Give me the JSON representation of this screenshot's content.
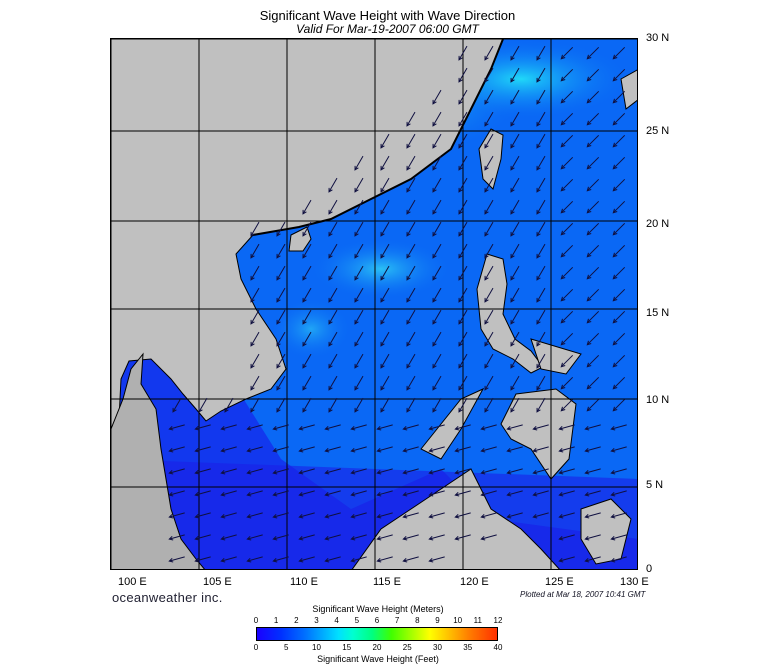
{
  "title": "Significant Wave Height with Wave Direction",
  "subtitle": "Valid For Mar-19-2007 06:00 GMT",
  "lon_labels": [
    "100 E",
    "105 E",
    "110 E",
    "115 E",
    "120 E",
    "125 E",
    "130 E"
  ],
  "lat_labels": [
    "30 N",
    "25 N",
    "20 N",
    "15 N",
    "10 N",
    "5 N",
    "0"
  ],
  "brand": "oceanweather inc.",
  "plotted": "Plotted at Mar 18, 2007 10:41 GMT",
  "colorbar": {
    "title_meters": "Significant Wave Height (Meters)",
    "title_feet": "Significant Wave Height (Feet)",
    "meters": [
      "0",
      "1",
      "2",
      "3",
      "4",
      "5",
      "6",
      "7",
      "8",
      "9",
      "10",
      "11",
      "12"
    ],
    "feet": [
      "0",
      "5",
      "10",
      "15",
      "20",
      "25",
      "30",
      "35",
      "40"
    ]
  },
  "colors": {
    "land": "#c0c0c0",
    "sea_deep": "#1030f0",
    "sea_mid": "#0a6cf5",
    "sea_high": "#18c8f0",
    "grid": "#000000"
  }
}
